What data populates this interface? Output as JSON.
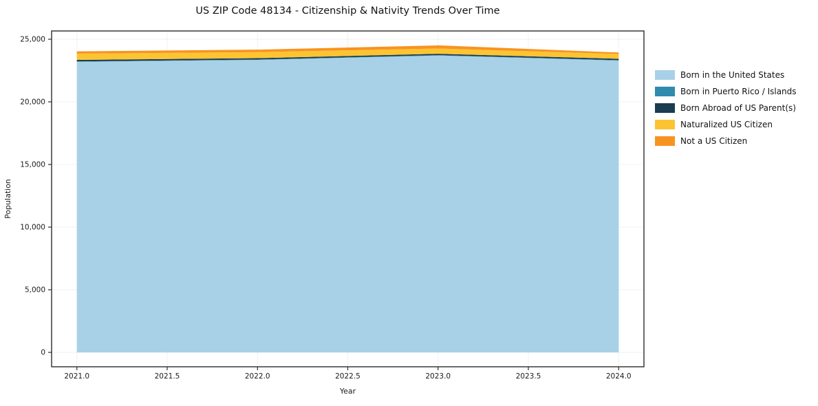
{
  "title": "US ZIP Code 48134 - Citizenship & Nativity Trends Over Time",
  "chart_data": {
    "type": "area",
    "stacked": true,
    "title": "US ZIP Code 48134 - Citizenship & Nativity Trends Over Time",
    "xlabel": "Year",
    "ylabel": "Population",
    "x": [
      2021,
      2022,
      2023,
      2024
    ],
    "series": [
      {
        "name": "Born in the United States",
        "color": "#a8d1e7",
        "values": [
          23200,
          23350,
          23700,
          23300
        ]
      },
      {
        "name": "Born in Puerto Rico / Islands",
        "color": "#2f8bad",
        "values": [
          30,
          30,
          40,
          30
        ]
      },
      {
        "name": "Born Abroad of US Parent(s)",
        "color": "#1c3d50",
        "values": [
          120,
          110,
          100,
          110
        ]
      },
      {
        "name": "Naturalized US Citizen",
        "color": "#fdc432",
        "values": [
          500,
          480,
          420,
          380
        ]
      },
      {
        "name": "Not a US Citizen",
        "color": "#f79420",
        "values": [
          180,
          200,
          250,
          120
        ]
      }
    ],
    "xlim": [
      2020.86,
      2024.14
    ],
    "ylim": [
      -1150,
      25660
    ],
    "xticks": {
      "values": [
        2021,
        2021.5,
        2022,
        2022.5,
        2023,
        2023.5,
        2024
      ],
      "labels": [
        "2021.0",
        "2021.5",
        "2022.0",
        "2022.5",
        "2023.0",
        "2023.5",
        "2024.0"
      ]
    },
    "yticks": {
      "values": [
        0,
        5000,
        10000,
        15000,
        20000,
        25000
      ],
      "labels": [
        "0",
        "5,000",
        "10,000",
        "15,000",
        "20,000",
        "25,000"
      ]
    },
    "grid": true,
    "legend_position": "right"
  },
  "colors": {
    "axis": "#2b2b2b",
    "tick_text": "#1a1a1a",
    "grid": "#000000"
  }
}
